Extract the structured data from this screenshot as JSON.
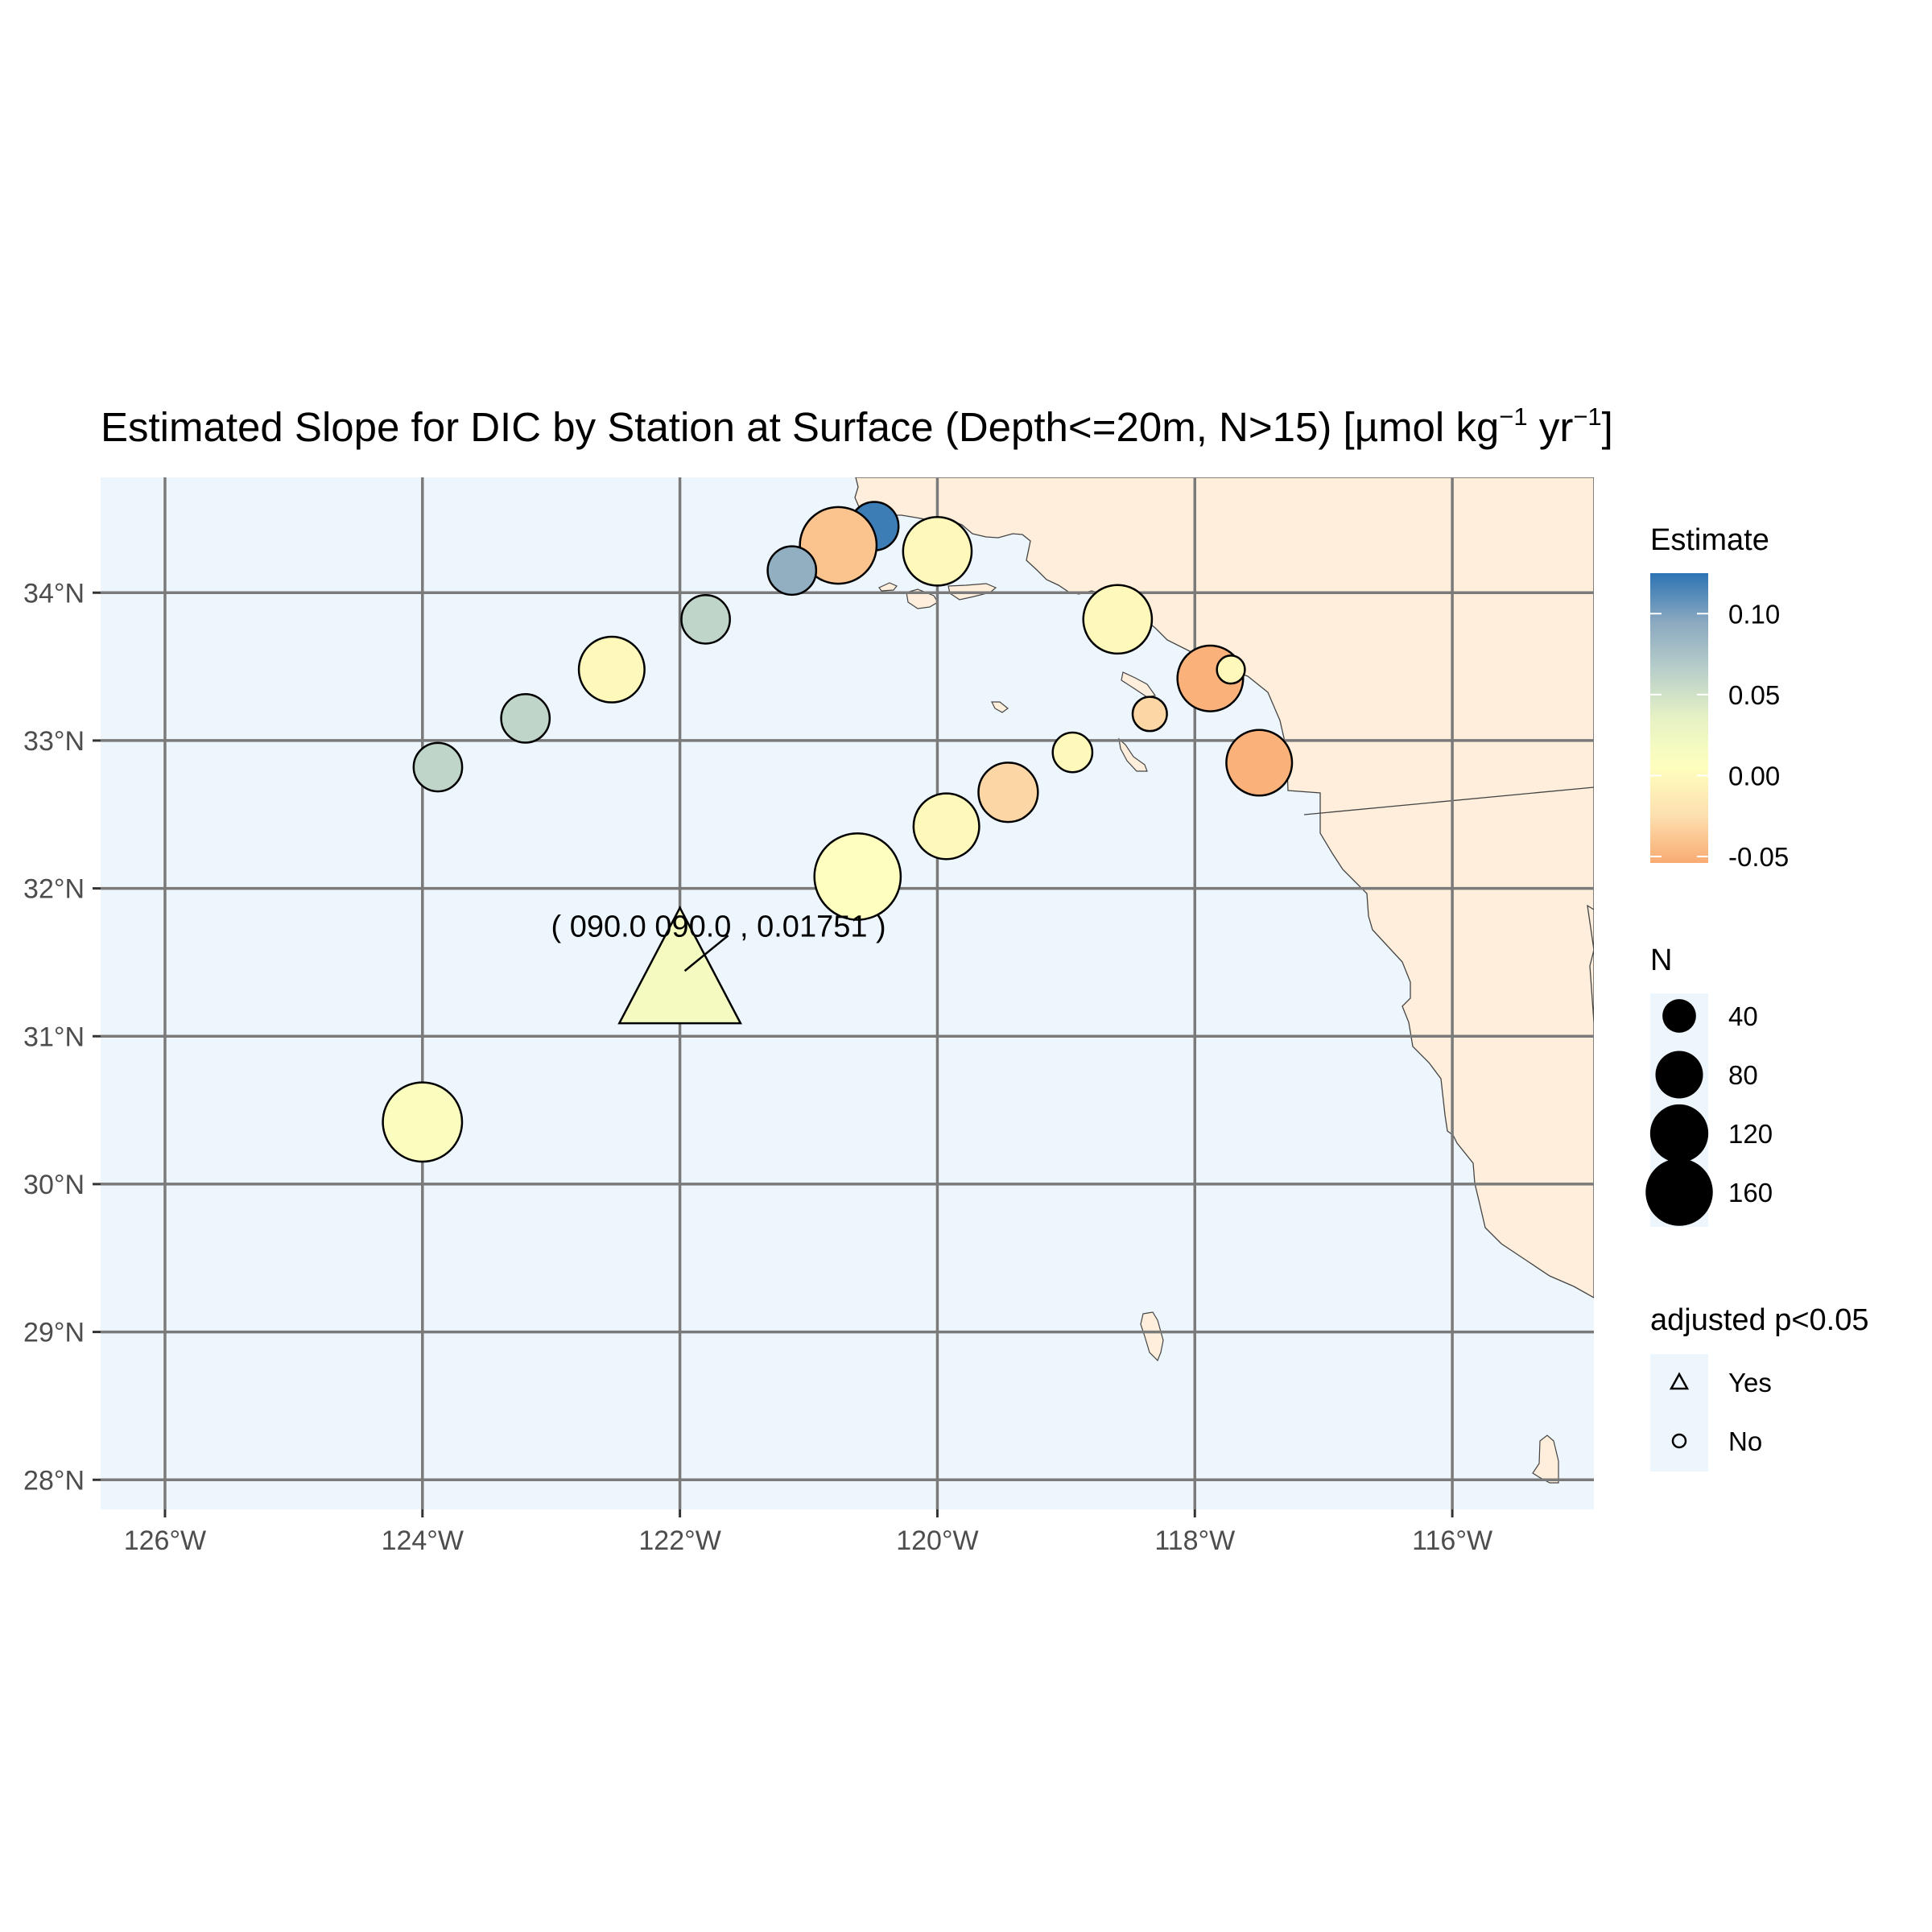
{
  "title": "Estimated Slope for DIC by Station at Surface (Depth<=20m, N>15) [µmol kg",
  "title_sup1": "−1",
  "title_mid": " yr",
  "title_sup2": "−1",
  "title_end": "]",
  "map": {
    "lon_range": [
      -126.5,
      -114.9
    ],
    "lat_range": [
      27.8,
      34.78
    ],
    "ocean_color": "#eef6fd",
    "land_color": "#feeedb",
    "grid_color": "#7a7a7a",
    "x_ticks": [
      {
        "value": -126,
        "label": "126°W"
      },
      {
        "value": -124,
        "label": "124°W"
      },
      {
        "value": -122,
        "label": "122°W"
      },
      {
        "value": -120,
        "label": "120°W"
      },
      {
        "value": -118,
        "label": "118°W"
      },
      {
        "value": -116,
        "label": "116°W"
      }
    ],
    "y_ticks": [
      {
        "value": 34,
        "label": "34°N"
      },
      {
        "value": 33,
        "label": "33°N"
      },
      {
        "value": 32,
        "label": "32°N"
      },
      {
        "value": 31,
        "label": "31°N"
      },
      {
        "value": 30,
        "label": "30°N"
      },
      {
        "value": 29,
        "label": "29°N"
      },
      {
        "value": 28,
        "label": "28°N"
      }
    ]
  },
  "chart_data": {
    "type": "scatter",
    "x_label": "",
    "y_label": "",
    "stations": [
      {
        "lon": -120.49,
        "lat": 34.45,
        "n": 30,
        "estimate": 0.12,
        "significant": false
      },
      {
        "lon": -120.77,
        "lat": 34.32,
        "n": 75,
        "estimate": -0.04,
        "significant": false
      },
      {
        "lon": -120.0,
        "lat": 34.28,
        "n": 60,
        "estimate": 0.0,
        "significant": false
      },
      {
        "lon": -121.13,
        "lat": 34.15,
        "n": 30,
        "estimate": 0.09,
        "significant": false
      },
      {
        "lon": -121.8,
        "lat": 33.82,
        "n": 30,
        "estimate": 0.06,
        "significant": false
      },
      {
        "lon": -118.6,
        "lat": 33.82,
        "n": 60,
        "estimate": 0.0,
        "significant": false
      },
      {
        "lon": -122.53,
        "lat": 33.48,
        "n": 55,
        "estimate": 0.0,
        "significant": false
      },
      {
        "lon": -117.88,
        "lat": 33.42,
        "n": 55,
        "estimate": -0.05,
        "significant": false
      },
      {
        "lon": -117.72,
        "lat": 33.48,
        "n": 10,
        "estimate": 0.0,
        "significant": false
      },
      {
        "lon": -123.2,
        "lat": 33.15,
        "n": 30,
        "estimate": 0.06,
        "significant": false
      },
      {
        "lon": -118.35,
        "lat": 33.18,
        "n": 15,
        "estimate": -0.03,
        "significant": false
      },
      {
        "lon": -123.88,
        "lat": 32.82,
        "n": 30,
        "estimate": 0.06,
        "significant": false
      },
      {
        "lon": -118.95,
        "lat": 32.92,
        "n": 20,
        "estimate": 0.0,
        "significant": false
      },
      {
        "lon": -117.5,
        "lat": 32.85,
        "n": 55,
        "estimate": -0.05,
        "significant": false
      },
      {
        "lon": -119.45,
        "lat": 32.65,
        "n": 45,
        "estimate": -0.03,
        "significant": false
      },
      {
        "lon": -119.93,
        "lat": 32.42,
        "n": 55,
        "estimate": 0.0,
        "significant": false
      },
      {
        "lon": -120.62,
        "lat": 32.08,
        "n": 95,
        "estimate": 0.005,
        "significant": false
      },
      {
        "lon": -122.0,
        "lat": 31.42,
        "n": 170,
        "estimate": 0.01751,
        "significant": true
      },
      {
        "lon": -124.0,
        "lat": 30.42,
        "n": 80,
        "estimate": 0.01,
        "significant": false
      }
    ],
    "annotation": {
      "text": "( 090.0 090.0 , 0.01751 )",
      "lon": -121.7,
      "lat": 31.75
    }
  },
  "legend": {
    "estimate": {
      "title": "Estimate",
      "ticks": [
        {
          "value": 0.1,
          "label": "0.10"
        },
        {
          "value": 0.05,
          "label": "0.05"
        },
        {
          "value": 0.0,
          "label": "0.00"
        },
        {
          "value": -0.05,
          "label": "-0.05"
        }
      ],
      "range": [
        -0.054,
        0.125
      ],
      "colors": [
        "#f9ab72",
        "#fde0b0",
        "#feffbe",
        "#e6f2c4",
        "#b8cfca",
        "#8aa8c0",
        "#2c74b4"
      ]
    },
    "n": {
      "title": "N",
      "items": [
        {
          "value": 40,
          "label": "40"
        },
        {
          "value": 80,
          "label": "80"
        },
        {
          "value": 120,
          "label": "120"
        },
        {
          "value": 160,
          "label": "160"
        }
      ]
    },
    "significance": {
      "title": "adjusted p<0.05",
      "items": [
        {
          "shape": "triangle",
          "label": "Yes"
        },
        {
          "shape": "circle",
          "label": "No"
        }
      ]
    }
  }
}
